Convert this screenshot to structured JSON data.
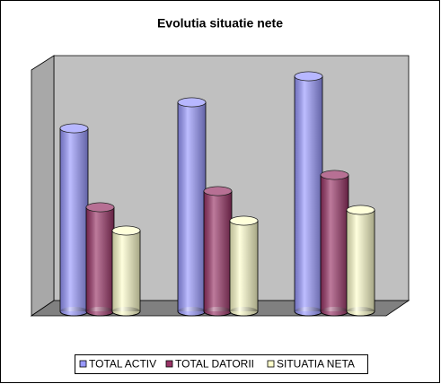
{
  "chart_data": {
    "type": "bar3d",
    "title": "Evolutia situatie nete",
    "categories": [
      null,
      null,
      null
    ],
    "series": [
      {
        "name": "TOTAL ACTIV",
        "color": "#9999ff",
        "values": [
          204,
          233,
          262
        ]
      },
      {
        "name": "TOTAL DATORII",
        "color": "#993366",
        "values": [
          116,
          134,
          152
        ]
      },
      {
        "name": "SITUATIA NETA",
        "color": "#ffffcc",
        "values": [
          90,
          101,
          113
        ]
      }
    ],
    "legend": "bottom"
  }
}
